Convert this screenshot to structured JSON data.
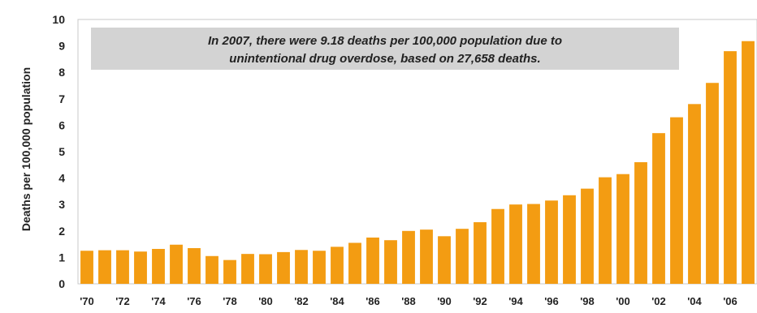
{
  "chart_data": {
    "type": "bar",
    "title": "",
    "xlabel": "",
    "ylabel": "Deaths per 100,000 population",
    "ylim": [
      0,
      10
    ],
    "yticks": [
      "0",
      "1",
      "2",
      "3",
      "4",
      "5",
      "6",
      "7",
      "8",
      "9",
      "10"
    ],
    "categories": [
      "1970",
      "1971",
      "1972",
      "1973",
      "1974",
      "1975",
      "1976",
      "1977",
      "1978",
      "1979",
      "1980",
      "1981",
      "1982",
      "1983",
      "1984",
      "1985",
      "1986",
      "1987",
      "1988",
      "1989",
      "1990",
      "1991",
      "1992",
      "1993",
      "1994",
      "1995",
      "1996",
      "1997",
      "1998",
      "1999",
      "2000",
      "2001",
      "2002",
      "2003",
      "2004",
      "2005",
      "2006",
      "2007"
    ],
    "xtick_labels": [
      "'70",
      "'72",
      "'74",
      "'76",
      "'78",
      "'80",
      "'82",
      "'84",
      "'86",
      "'88",
      "'90",
      "'92",
      "'94",
      "'96",
      "'98",
      "'00",
      "'02",
      "'04",
      "'06"
    ],
    "values": [
      1.25,
      1.27,
      1.27,
      1.22,
      1.32,
      1.48,
      1.35,
      1.05,
      0.9,
      1.13,
      1.12,
      1.2,
      1.28,
      1.25,
      1.4,
      1.55,
      1.75,
      1.65,
      2.0,
      2.05,
      1.8,
      2.08,
      2.33,
      2.83,
      3.0,
      3.02,
      3.15,
      3.35,
      3.6,
      4.03,
      4.15,
      4.6,
      5.7,
      6.3,
      6.8,
      7.6,
      8.8,
      9.18
    ],
    "bar_color": "#f39c12",
    "annotation": {
      "lines": [
        "In 2007, there were 9.18 deaths per 100,000 population due to",
        "unintentional drug overdose, based on 27,658 deaths."
      ],
      "box_color": "#d3d3d3"
    },
    "grid": false
  }
}
